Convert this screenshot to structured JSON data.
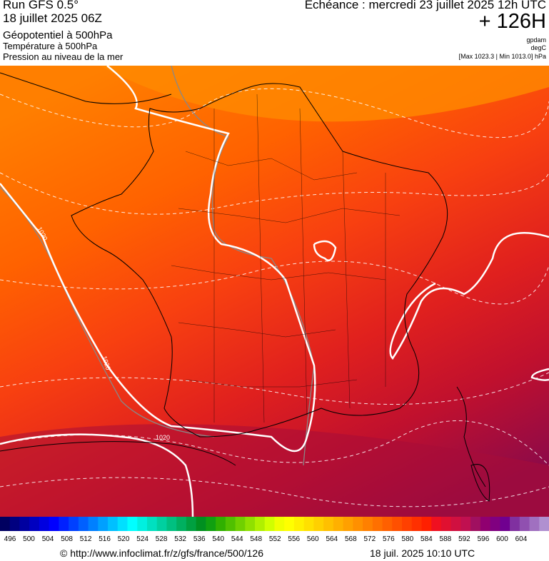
{
  "header": {
    "run": "Run GFS 0.5°",
    "date": "18 juillet 2025 06Z",
    "field1": "Géopotentiel à 500hPa",
    "field2": "Température à 500hPa",
    "field3": "Pression au niveau de la mer",
    "echeance": "Echéance : mercredi 23 juillet 2025 12h UTC",
    "lead": "+ 126H",
    "unit1": "gpdam",
    "unit2": "degC",
    "range": "[Max 1023.3 | Min 1013.0] hPa"
  },
  "map": {
    "contour_labels": [
      "1020",
      "1020",
      "1020"
    ]
  },
  "colorbar": {
    "ticks": [
      496,
      500,
      504,
      508,
      512,
      516,
      520,
      524,
      528,
      532,
      536,
      540,
      544,
      548,
      552,
      556,
      560,
      564,
      568,
      572,
      576,
      580,
      584,
      588,
      592,
      596,
      600,
      604
    ],
    "colors": [
      "#000060",
      "#000080",
      "#0000a0",
      "#0000c0",
      "#0000e0",
      "#0000ff",
      "#0020ff",
      "#0040ff",
      "#0060ff",
      "#0080ff",
      "#00a0ff",
      "#00c0ff",
      "#00e0ff",
      "#00ffff",
      "#00f0e0",
      "#00e0c0",
      "#00d0a0",
      "#00c080",
      "#00b060",
      "#00a040",
      "#009020",
      "#10a010",
      "#30b000",
      "#50c000",
      "#70d000",
      "#90e000",
      "#b0f000",
      "#d0ff00",
      "#f0ff00",
      "#ffff00",
      "#fff000",
      "#ffe000",
      "#ffd000",
      "#ffc000",
      "#ffb000",
      "#ffa000",
      "#ff9000",
      "#ff8000",
      "#ff7000",
      "#ff6000",
      "#ff5000",
      "#ff4000",
      "#ff3000",
      "#ff2000",
      "#f01020",
      "#e01030",
      "#d01040",
      "#c01050",
      "#a01060",
      "#900070",
      "#800080",
      "#700090",
      "#8030a0",
      "#9050b0",
      "#a070c0",
      "#b090d0"
    ]
  },
  "footer": {
    "url": "© http://www.infoclimat.fr/z/gfs/france/500/126",
    "timestamp": "18 juil. 2025 10:10 UTC"
  }
}
